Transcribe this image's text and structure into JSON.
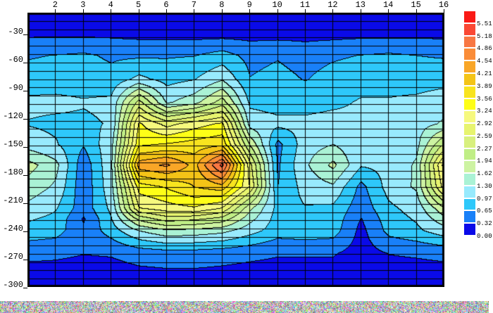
{
  "chart_data": {
    "type": "heatmap",
    "title": "",
    "xlabel": "",
    "ylabel": "",
    "xlim": [
      1,
      16
    ],
    "ylim": [
      -302,
      -10
    ],
    "grid": true,
    "legend_position": "right",
    "x": [
      1,
      2,
      3,
      4,
      5,
      6,
      7,
      8,
      9,
      10,
      11,
      12,
      13,
      14,
      15,
      16
    ],
    "y_levels": [
      -10,
      -33,
      -55,
      -80,
      -105,
      -128,
      -150,
      -172,
      -195,
      -218,
      -230,
      -242,
      -266,
      -300
    ],
    "values": [
      [
        0.15,
        0.15,
        0.15,
        0.15,
        0.15,
        0.15,
        0.15,
        0.15,
        0.15,
        0.15,
        0.15,
        0.15,
        0.15,
        0.15,
        0.15,
        0.15
      ],
      [
        0.28,
        0.28,
        0.28,
        0.27,
        0.24,
        0.23,
        0.22,
        0.22,
        0.22,
        0.22,
        0.22,
        0.23,
        0.25,
        0.25,
        0.25,
        0.25
      ],
      [
        0.62,
        0.66,
        0.7,
        0.6,
        0.6,
        0.62,
        0.64,
        0.78,
        0.55,
        0.62,
        0.52,
        0.6,
        0.66,
        0.7,
        0.65,
        0.62
      ],
      [
        0.78,
        0.82,
        0.82,
        0.75,
        1.05,
        0.85,
        0.95,
        1.25,
        0.66,
        0.75,
        0.63,
        0.78,
        0.85,
        0.85,
        0.82,
        0.85
      ],
      [
        1.05,
        1.05,
        1.0,
        1.05,
        2.4,
        1.25,
        1.5,
        2.1,
        0.9,
        0.85,
        0.85,
        0.9,
        1.0,
        1.0,
        1.05,
        1.15
      ],
      [
        0.95,
        0.9,
        0.9,
        1.0,
        3.3,
        2.8,
        3.1,
        3.3,
        1.15,
        1.05,
        1.05,
        1.1,
        1.05,
        1.1,
        1.15,
        1.35
      ],
      [
        1.15,
        1.0,
        0.68,
        1.2,
        3.5,
        3.6,
        3.7,
        3.8,
        1.9,
        0.55,
        1.15,
        1.3,
        1.05,
        1.1,
        1.2,
        2.3
      ],
      [
        1.75,
        1.4,
        0.42,
        1.25,
        4.4,
        4.6,
        4.1,
        5.3,
        2.7,
        0.6,
        1.25,
        1.7,
        1.0,
        1.05,
        1.35,
        3.4
      ],
      [
        1.5,
        1.25,
        0.4,
        1.2,
        3.4,
        3.6,
        3.9,
        4.1,
        2.9,
        0.65,
        1.1,
        1.25,
        0.55,
        1.1,
        1.35,
        3.1
      ],
      [
        1.2,
        1.0,
        0.45,
        1.05,
        2.9,
        3.1,
        3.2,
        2.9,
        1.7,
        0.85,
        0.95,
        0.9,
        0.45,
        0.9,
        1.1,
        1.9
      ],
      [
        1.0,
        0.88,
        0.28,
        0.95,
        2.0,
        2.4,
        2.3,
        2.1,
        1.4,
        0.82,
        0.9,
        0.85,
        0.3,
        0.82,
        1.0,
        1.5
      ],
      [
        0.85,
        0.78,
        0.4,
        0.8,
        1.3,
        1.55,
        1.5,
        1.4,
        1.1,
        0.8,
        0.85,
        0.8,
        0.22,
        0.75,
        0.9,
        1.15
      ],
      [
        0.4,
        0.38,
        0.33,
        0.35,
        0.45,
        0.5,
        0.5,
        0.45,
        0.4,
        0.35,
        0.35,
        0.35,
        0.18,
        0.33,
        0.36,
        0.4
      ],
      [
        0.1,
        0.1,
        0.1,
        0.1,
        0.12,
        0.12,
        0.12,
        0.12,
        0.1,
        0.1,
        0.1,
        0.1,
        0.08,
        0.1,
        0.1,
        0.1
      ]
    ],
    "levels": [
      0.0,
      0.32,
      0.65,
      0.97,
      1.3,
      1.62,
      1.94,
      2.27,
      2.59,
      2.92,
      3.24,
      3.56,
      3.89,
      4.21,
      4.54,
      4.86,
      5.18,
      5.51
    ],
    "palette": [
      "#0a0ae8",
      "#1980f8",
      "#2ec8fa",
      "#98eafd",
      "#aaf2d5",
      "#cdf3a2",
      "#c0ee86",
      "#d8f07e",
      "#e7f46e",
      "#f6f97e",
      "#fefe17",
      "#f8e41f",
      "#f4c417",
      "#f9a627",
      "#fa8c38",
      "#f87743",
      "#fa4834",
      "#fa1a16"
    ],
    "contour_line_color": "#000000",
    "grid_color": "#000000"
  },
  "axes": {
    "x_ticks": [
      "2",
      "3",
      "4",
      "5",
      "6",
      "7",
      "8",
      "9",
      "10",
      "11",
      "12",
      "13",
      "14",
      "15",
      "16"
    ],
    "x_tick_values": [
      2,
      3,
      4,
      5,
      6,
      7,
      8,
      9,
      10,
      11,
      12,
      13,
      14,
      15,
      16
    ],
    "y_ticks": [
      "-30",
      "-60",
      "-90",
      "-120",
      "-150",
      "-180",
      "-210",
      "-240",
      "-270",
      "-300"
    ],
    "y_tick_values": [
      -30,
      -60,
      -90,
      -120,
      -150,
      -180,
      -210,
      -240,
      -270,
      -300
    ]
  },
  "colorbar": {
    "labels": [
      "5.51",
      "5.18",
      "4.86",
      "4.54",
      "4.21",
      "3.89",
      "3.56",
      "3.24",
      "2.92",
      "2.59",
      "2.27",
      "1.94",
      "1.62",
      "1.30",
      "0.97",
      "0.65",
      "0.32",
      "0.00"
    ],
    "colors": [
      "#fa1a16",
      "#fa4834",
      "#f87743",
      "#fa8c38",
      "#f9a627",
      "#f4c417",
      "#f8e41f",
      "#fefe17",
      "#f6f97e",
      "#e7f46e",
      "#d8f07e",
      "#c0ee86",
      "#cdf3a2",
      "#aaf2d5",
      "#98eafd",
      "#2ec8fa",
      "#1980f8",
      "#0a0ae8"
    ]
  }
}
